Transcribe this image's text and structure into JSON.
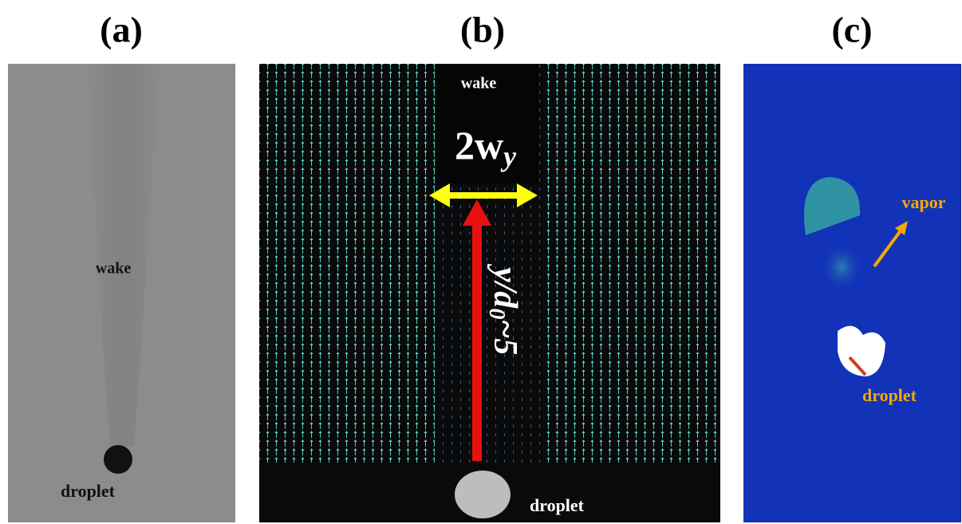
{
  "panels": [
    {
      "label": "(a)",
      "annotations": [
        "wake",
        "droplet"
      ]
    },
    {
      "label": "(b)",
      "annotations": [
        "wake",
        "droplet"
      ],
      "width_label": {
        "main": "2w",
        "sub": "y"
      },
      "height_label": {
        "main": "y/d",
        "sub": "0",
        "rest": "~5"
      }
    },
    {
      "label": "(c)",
      "annotations": [
        "vapor",
        "droplet"
      ]
    }
  ]
}
